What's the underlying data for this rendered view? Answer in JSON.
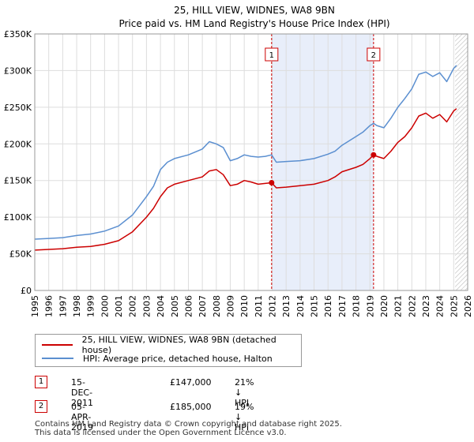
{
  "chart_data": {
    "type": "line",
    "title": "25, HILL VIEW, WIDNES, WA8 9BN",
    "subtitle": "Price paid vs. HM Land Registry's House Price Index (HPI)",
    "xlabel": "",
    "ylabel": "",
    "xlim": [
      1995,
      2026
    ],
    "ylim": [
      0,
      350000
    ],
    "y_ticks": [
      0,
      50000,
      100000,
      150000,
      200000,
      250000,
      300000,
      350000
    ],
    "y_tick_labels": [
      "£0",
      "£50K",
      "£100K",
      "£150K",
      "£200K",
      "£250K",
      "£300K",
      "£350K"
    ],
    "x_ticks": [
      1995,
      1996,
      1997,
      1998,
      1999,
      2000,
      2001,
      2002,
      2003,
      2004,
      2005,
      2006,
      2007,
      2008,
      2009,
      2010,
      2011,
      2012,
      2013,
      2014,
      2015,
      2016,
      2017,
      2018,
      2019,
      2020,
      2021,
      2022,
      2023,
      2024,
      2025,
      2026
    ],
    "x_tick_labels": [
      "1995",
      "1996",
      "1997",
      "1998",
      "1999",
      "2000",
      "2001",
      "2002",
      "2003",
      "2004",
      "2005",
      "2006",
      "2007",
      "2008",
      "2009",
      "2010",
      "2011",
      "2012",
      "2013",
      "2014",
      "2015",
      "2016",
      "2017",
      "2018",
      "2019",
      "2020",
      "2021",
      "2022",
      "2023",
      "2024",
      "2025",
      "2026"
    ],
    "grid": true,
    "shaded_region": [
      2011.96,
      2019.26
    ],
    "hatched_from": 2025.1,
    "series": [
      {
        "name": "25, HILL VIEW, WIDNES, WA8 9BN (detached house)",
        "color": "#cc0000",
        "x": [
          1995,
          1996,
          1997,
          1998,
          1999,
          2000,
          2001,
          2002,
          2003,
          2003.5,
          2004,
          2004.5,
          2005,
          2006,
          2007,
          2007.5,
          2008,
          2008.5,
          2009,
          2009.5,
          2010,
          2010.5,
          2011,
          2011.5,
          2011.96,
          2012.3,
          2013,
          2014,
          2015,
          2016,
          2016.5,
          2017,
          2018,
          2018.5,
          2019,
          2019.26,
          2019.5,
          2020,
          2020.5,
          2021,
          2021.5,
          2022,
          2022.5,
          2023,
          2023.5,
          2024,
          2024.5,
          2025,
          2025.2
        ],
        "values": [
          55000,
          56000,
          57000,
          59000,
          60000,
          63000,
          68000,
          80000,
          100000,
          112000,
          128000,
          140000,
          145000,
          150000,
          155000,
          163000,
          165000,
          158000,
          143000,
          145000,
          150000,
          148000,
          145000,
          146000,
          147000,
          140000,
          141000,
          143000,
          145000,
          150000,
          155000,
          162000,
          168000,
          172000,
          180000,
          185000,
          183000,
          180000,
          190000,
          202000,
          210000,
          222000,
          238000,
          242000,
          235000,
          240000,
          230000,
          245000,
          248000
        ]
      },
      {
        "name": "HPI: Average price, detached house, Halton",
        "color": "#5b8fd0",
        "x": [
          1995,
          1996,
          1997,
          1998,
          1999,
          2000,
          2001,
          2002,
          2003,
          2003.5,
          2004,
          2004.5,
          2005,
          2006,
          2007,
          2007.5,
          2008,
          2008.5,
          2009,
          2009.5,
          2010,
          2010.5,
          2011,
          2011.5,
          2011.96,
          2012.3,
          2013,
          2014,
          2015,
          2016,
          2016.5,
          2017,
          2018,
          2018.5,
          2019,
          2019.26,
          2019.5,
          2020,
          2020.5,
          2021,
          2021.5,
          2022,
          2022.5,
          2023,
          2023.5,
          2024,
          2024.5,
          2025,
          2025.2
        ],
        "values": [
          70000,
          71000,
          72000,
          75000,
          77000,
          81000,
          88000,
          103000,
          128000,
          142000,
          165000,
          175000,
          180000,
          185000,
          193000,
          203000,
          200000,
          195000,
          177000,
          180000,
          185000,
          183000,
          182000,
          183000,
          185000,
          175000,
          176000,
          177000,
          180000,
          186000,
          190000,
          198000,
          210000,
          216000,
          225000,
          228000,
          225000,
          222000,
          235000,
          250000,
          262000,
          275000,
          295000,
          298000,
          292000,
          297000,
          285000,
          303000,
          307000
        ]
      }
    ],
    "annotations": [
      {
        "label": "1",
        "x": 2011.96,
        "price": 147000
      },
      {
        "label": "2",
        "x": 2019.26,
        "price": 185000
      }
    ]
  },
  "legend": {
    "red_label": "25, HILL VIEW, WIDNES, WA8 9BN (detached house)",
    "blue_label": "HPI: Average price, detached house, Halton",
    "red_color": "#cc0000",
    "blue_color": "#5b8fd0"
  },
  "sales": [
    {
      "num": "1",
      "date": "15-DEC-2011",
      "price": "£147,000",
      "hpi": "21% ↓ HPI"
    },
    {
      "num": "2",
      "date": "05-APR-2019",
      "price": "£185,000",
      "hpi": "19% ↓ HPI"
    }
  ],
  "footer": {
    "line1": "Contains HM Land Registry data © Crown copyright and database right 2025.",
    "line2": "This data is licensed under the Open Government Licence v3.0."
  }
}
